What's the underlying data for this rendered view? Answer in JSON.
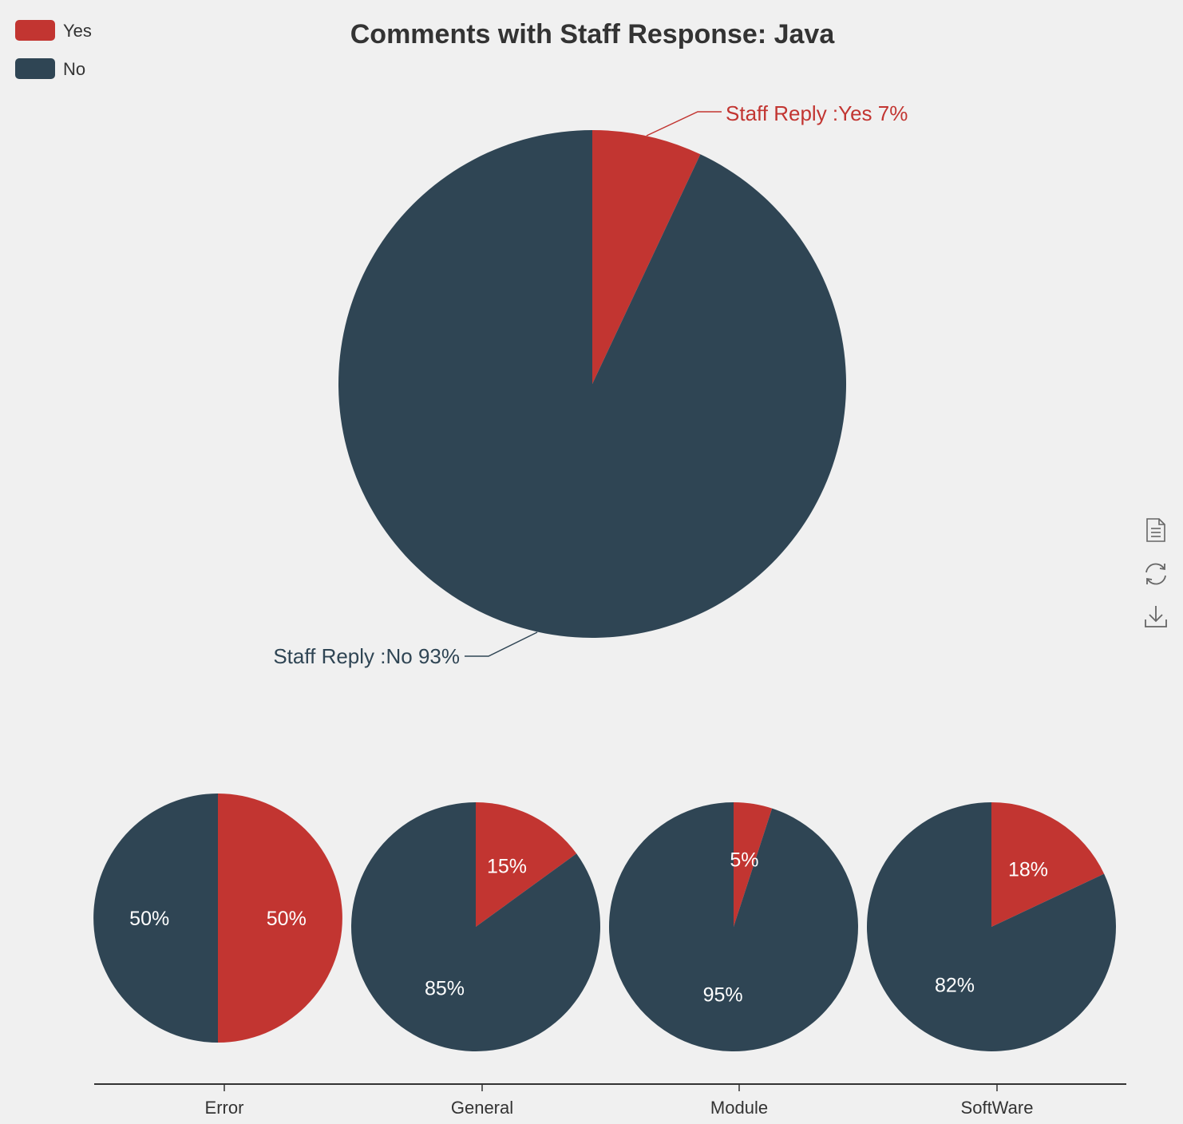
{
  "chart_data": [
    {
      "type": "pie",
      "title": "Comments with Staff Response: Java",
      "legend": {
        "position": "top-left",
        "items": [
          "Yes",
          "No"
        ]
      },
      "series": [
        {
          "name": "Yes",
          "value": 7,
          "label": "Staff Reply :Yes 7%"
        },
        {
          "name": "No",
          "value": 93,
          "label": "Staff Reply :No 93%"
        }
      ]
    },
    {
      "type": "pie",
      "subtype": "pies-on-category-axis",
      "categories": [
        "Error",
        "General",
        "Module",
        "SoftWare"
      ],
      "series": [
        {
          "name": "Yes",
          "values": [
            50,
            15,
            5,
            18
          ]
        },
        {
          "name": "No",
          "values": [
            50,
            85,
            95,
            82
          ]
        }
      ],
      "value_labels": [
        [
          "50%",
          "50%"
        ],
        [
          "15%",
          "85%"
        ],
        [
          "5%",
          "95%"
        ],
        [
          "18%",
          "82%"
        ]
      ]
    }
  ],
  "colors": {
    "yes": "#c23531",
    "no": "#2f4554",
    "background": "#f0f0f0",
    "title": "#333333",
    "axis": "#333333",
    "toolbox": "#666666"
  },
  "toolbox": {
    "icons": [
      "data-view-icon",
      "restore-icon",
      "save-image-icon"
    ]
  }
}
